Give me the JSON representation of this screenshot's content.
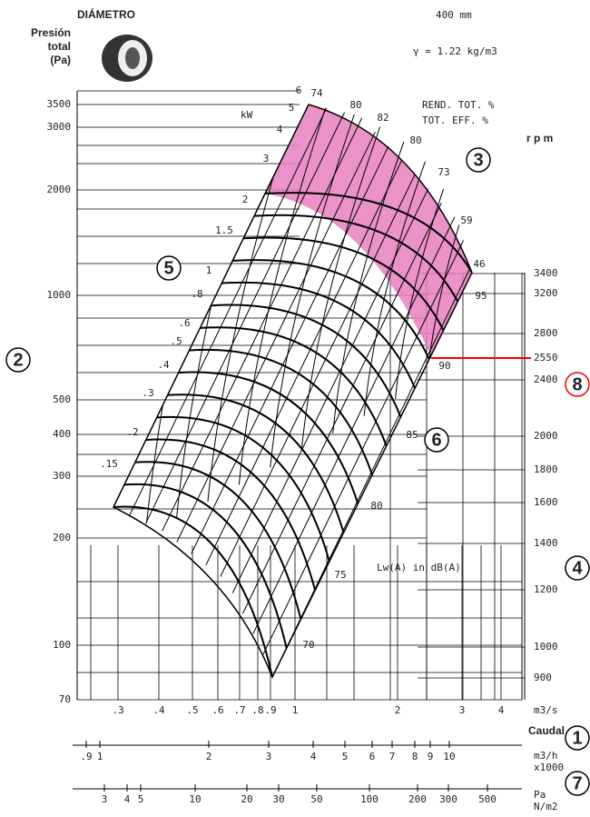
{
  "header": {
    "diameter_label": "DIÁMETRO",
    "diameter_value": "400 mm",
    "pressure_label": [
      "Presión",
      "total",
      "(Pa)"
    ],
    "density": "γ = 1.22 kg/m3",
    "efficiency_es": "REND. TOT.  %",
    "efficiency_en": "TOT.  EFF.  %",
    "rpm_label": "r p m",
    "kw_label": "kW",
    "noise_label": "Lw(A) in dB(A)",
    "flow_label": "Caudal"
  },
  "pressure_ticks": [
    3500,
    3000,
    2000,
    1000,
    500,
    400,
    300,
    200,
    100,
    70
  ],
  "rpm_ticks": [
    3400,
    3200,
    2800,
    2550,
    2400,
    2000,
    1800,
    1600,
    1400,
    1200,
    1000,
    900
  ],
  "kw_labels": [
    6,
    5,
    4,
    3,
    2,
    1.5,
    1,
    ".8",
    ".6",
    ".5",
    ".4",
    ".3",
    ".2",
    ".15"
  ],
  "efficiency_labels": [
    74,
    80,
    82,
    80,
    73,
    59,
    46
  ],
  "noise_labels": [
    95,
    90,
    85,
    80,
    75,
    70
  ],
  "flow_m3s": {
    "ticks": [
      ".3",
      ".4",
      ".5",
      ".6",
      ".7",
      ".8",
      ".9",
      1,
      2,
      3,
      4
    ],
    "unit": "m3/s"
  },
  "flow_m3h": {
    "ticks": [
      ".9",
      1,
      2,
      3,
      4,
      5,
      6,
      7,
      8,
      9,
      10
    ],
    "unit": "m3/h",
    "multiplier": "x1000"
  },
  "pressure_pa": {
    "ticks": [
      3,
      4,
      5,
      10,
      20,
      30,
      50,
      100,
      200,
      300,
      500
    ],
    "unit": "Pa",
    "unit2": "N/m2"
  },
  "callouts": [
    1,
    2,
    3,
    4,
    5,
    6,
    7,
    8
  ]
}
